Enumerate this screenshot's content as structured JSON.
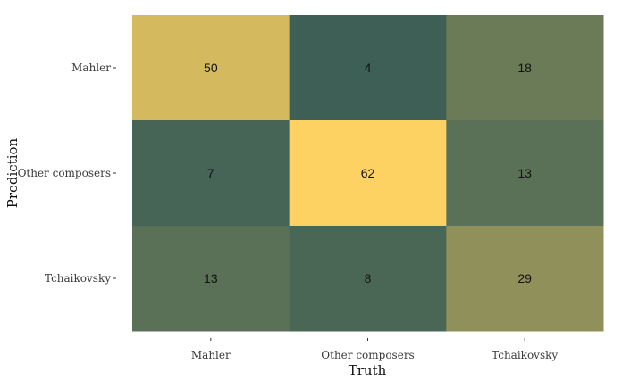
{
  "chart_data": {
    "type": "heatmap",
    "title": "",
    "xlabel": "Truth",
    "ylabel": "Prediction",
    "x_categories": [
      "Mahler",
      "Other composers",
      "Tchaikovsky"
    ],
    "y_categories": [
      "Mahler",
      "Other composers",
      "Tchaikovsky"
    ],
    "values": [
      [
        50,
        4,
        18
      ],
      [
        7,
        62,
        13
      ],
      [
        13,
        8,
        29
      ]
    ],
    "color_low": "#3d5f55",
    "color_high": "#fdd162",
    "legend": "none"
  }
}
